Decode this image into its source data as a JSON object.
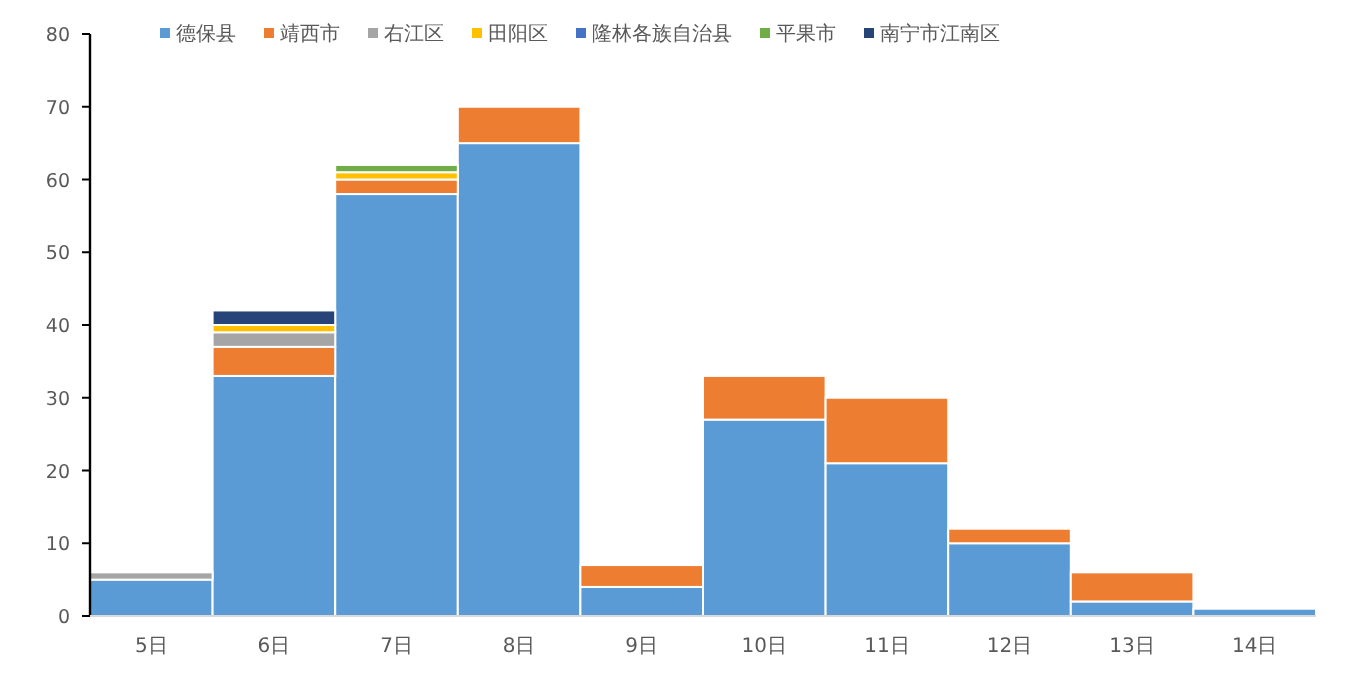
{
  "chart_data": {
    "type": "bar",
    "stacked": true,
    "legend": "top",
    "grid": false,
    "categories": [
      "5日",
      "6日",
      "7日",
      "8日",
      "9日",
      "10日",
      "11日",
      "12日",
      "13日",
      "14日"
    ],
    "ylim": [
      0,
      80
    ],
    "yticks": [
      0,
      10,
      20,
      30,
      40,
      50,
      60,
      70,
      80
    ],
    "series": [
      {
        "name": "德保县",
        "color": "#5b9bd5",
        "values": [
          5,
          33,
          58,
          65,
          4,
          27,
          21,
          10,
          2,
          1
        ]
      },
      {
        "name": "靖西市",
        "color": "#ed7d31",
        "values": [
          null,
          4,
          2,
          5,
          3,
          6,
          9,
          2,
          4,
          null
        ]
      },
      {
        "name": "右江区",
        "color": "#a5a5a5",
        "values": [
          1,
          2,
          null,
          null,
          null,
          null,
          null,
          null,
          null,
          null
        ]
      },
      {
        "name": "田阳区",
        "color": "#ffc000",
        "values": [
          null,
          1,
          1,
          null,
          null,
          null,
          null,
          null,
          null,
          null
        ]
      },
      {
        "name": "隆林各族自治县",
        "color": "#4472c4",
        "values": [
          null,
          null,
          null,
          null,
          null,
          null,
          null,
          null,
          null,
          null
        ]
      },
      {
        "name": "平果市",
        "color": "#70ad47",
        "values": [
          null,
          null,
          1,
          null,
          null,
          null,
          null,
          null,
          null,
          null
        ]
      },
      {
        "name": "南宁市江南区",
        "color": "#264478",
        "values": [
          null,
          2,
          null,
          null,
          null,
          null,
          null,
          null,
          null,
          null
        ]
      }
    ]
  }
}
